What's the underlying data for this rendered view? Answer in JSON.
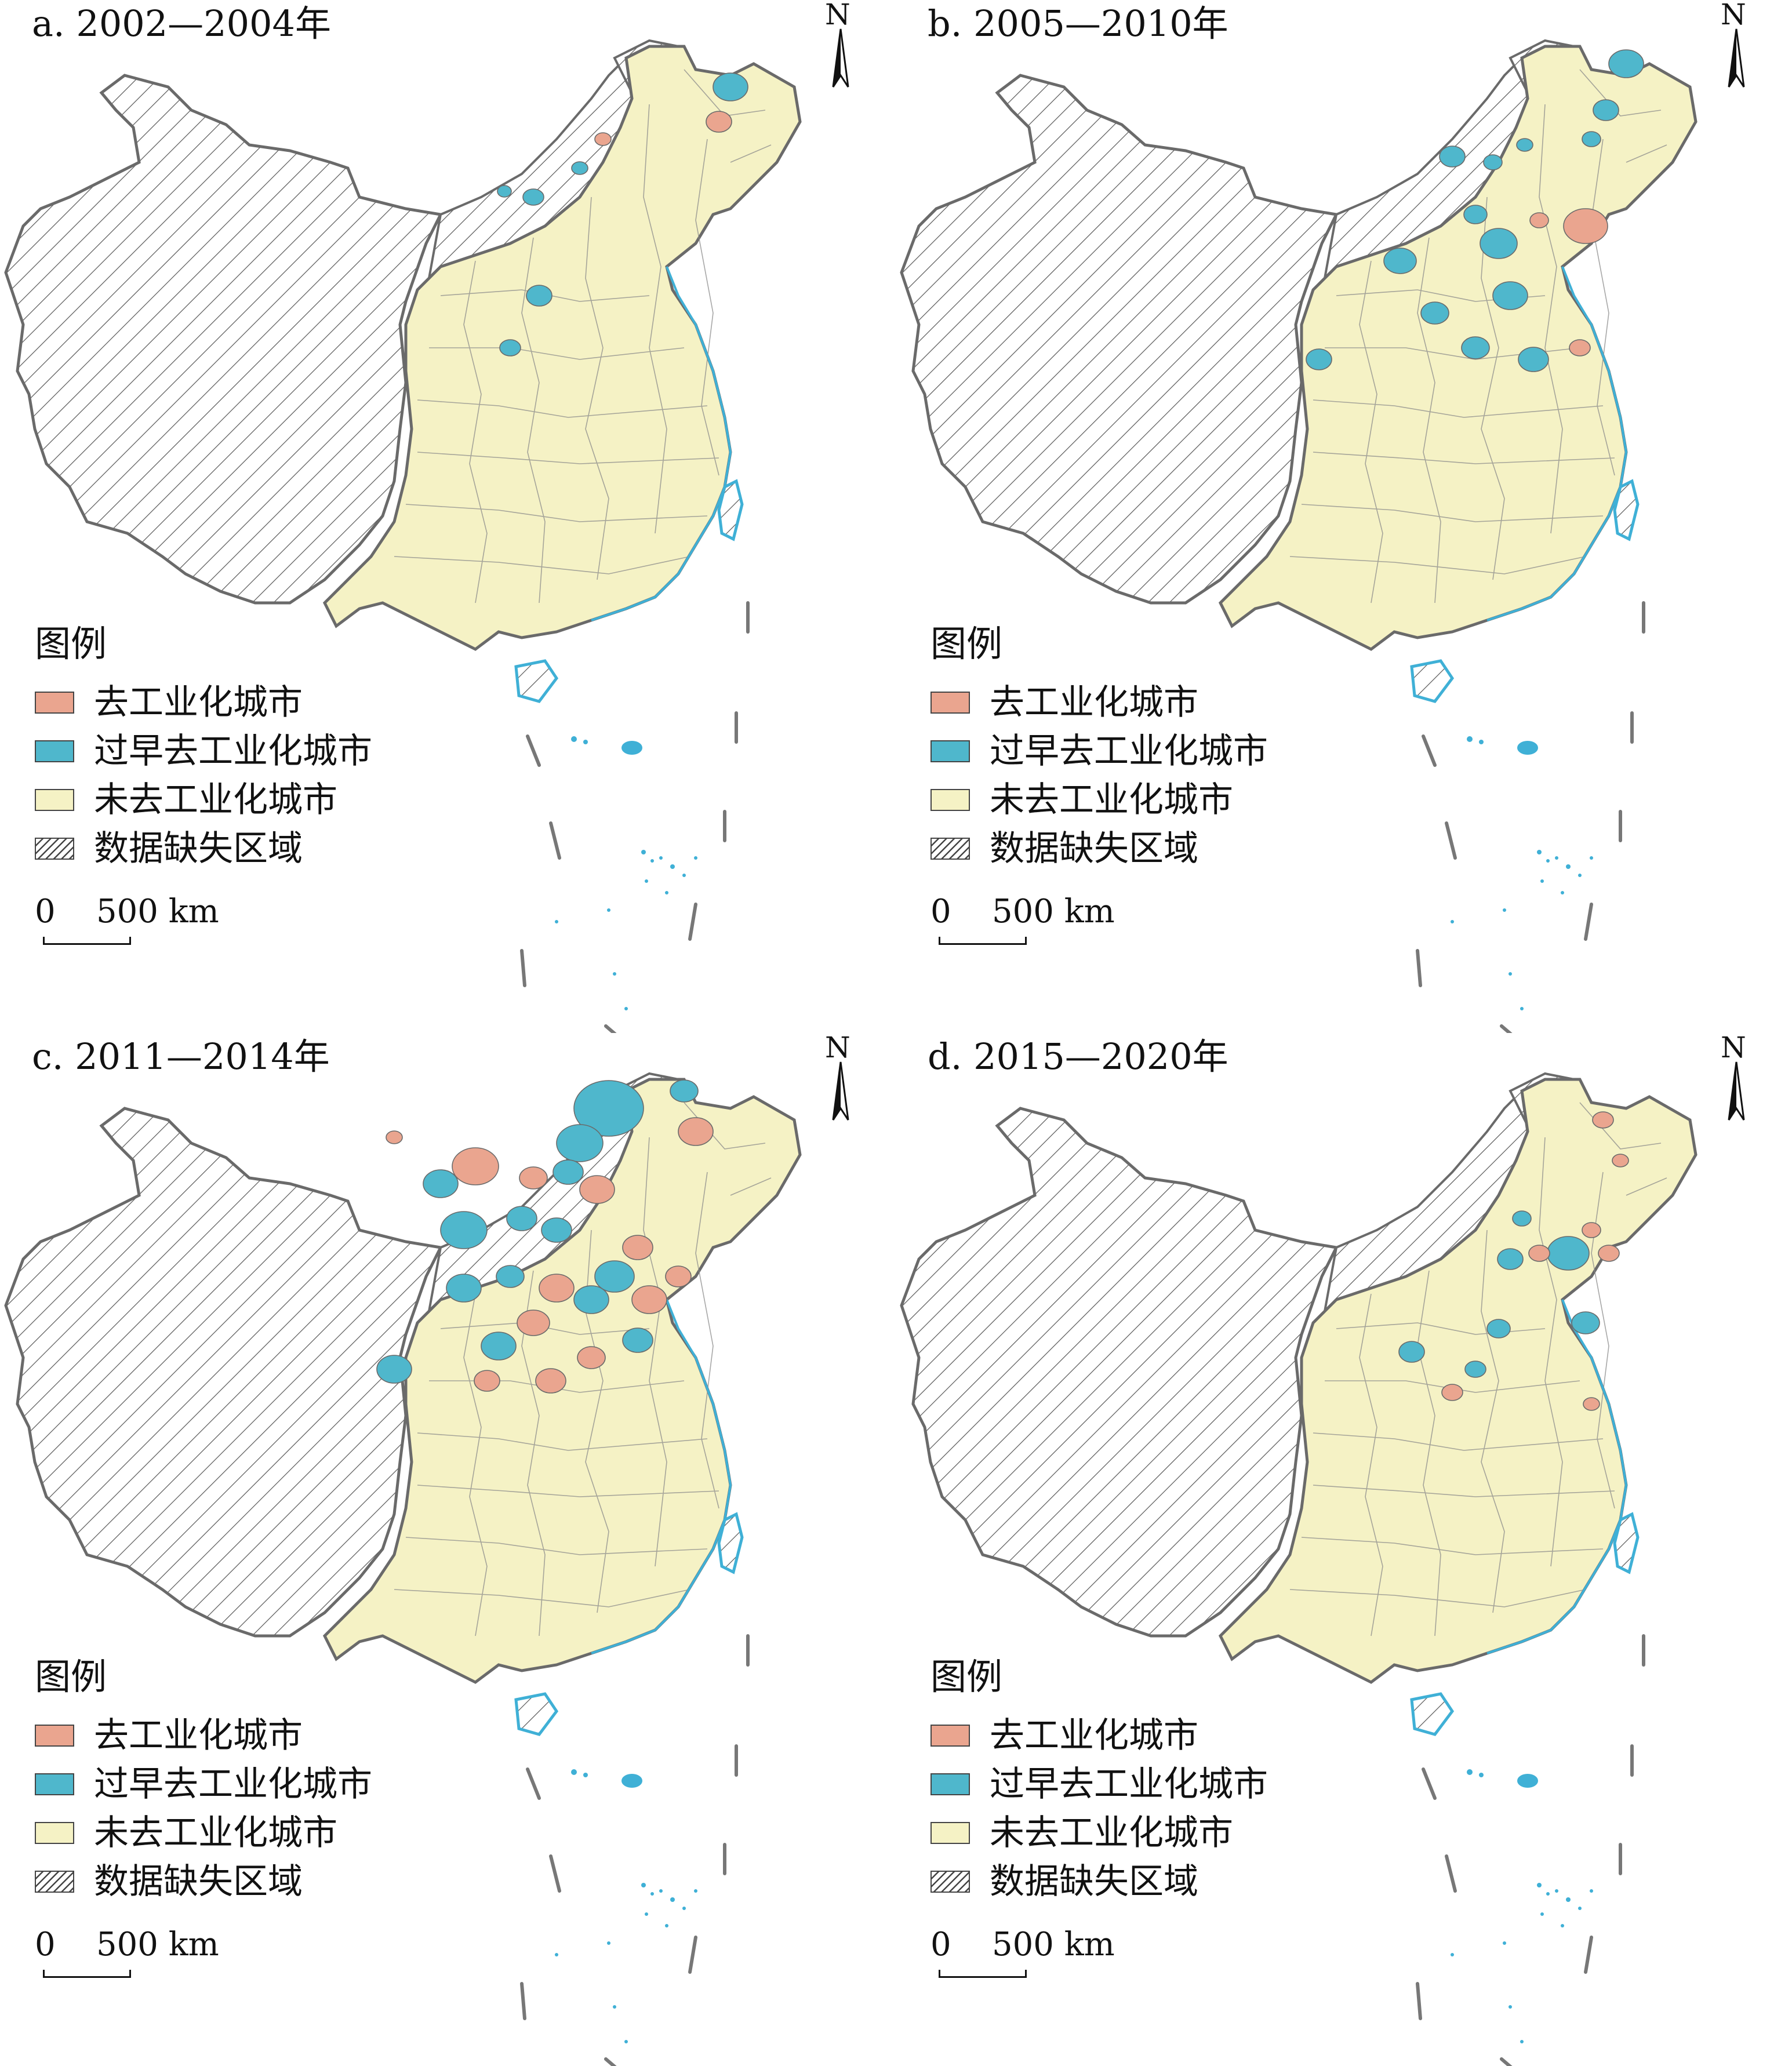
{
  "figure": {
    "panels": [
      {
        "id": "a",
        "title": "a. 2002—2004年"
      },
      {
        "id": "b",
        "title": "b. 2005—2010年"
      },
      {
        "id": "c",
        "title": "c. 2011—2014年"
      },
      {
        "id": "d",
        "title": "d. 2015—2020年"
      }
    ],
    "north_label": "N",
    "legend": {
      "title": "图例",
      "items": [
        {
          "label": "去工业化城市",
          "color": "#eaa58f"
        },
        {
          "label": "过早去工业化城市",
          "color": "#4fb7cc"
        },
        {
          "label": "未去工业化城市",
          "color": "#f5f2c5"
        },
        {
          "label": "数据缺失区域",
          "pattern": "diagonal-hatch"
        }
      ]
    },
    "scale_bar": {
      "zero": "0",
      "distance": "500 km"
    },
    "colors": {
      "deindustrialized": "#eaa58f",
      "premature": "#4fb7cc",
      "not_deindustrialized": "#f5f2c5",
      "border": "#777777",
      "coast": "#3fb0d6"
    }
  }
}
